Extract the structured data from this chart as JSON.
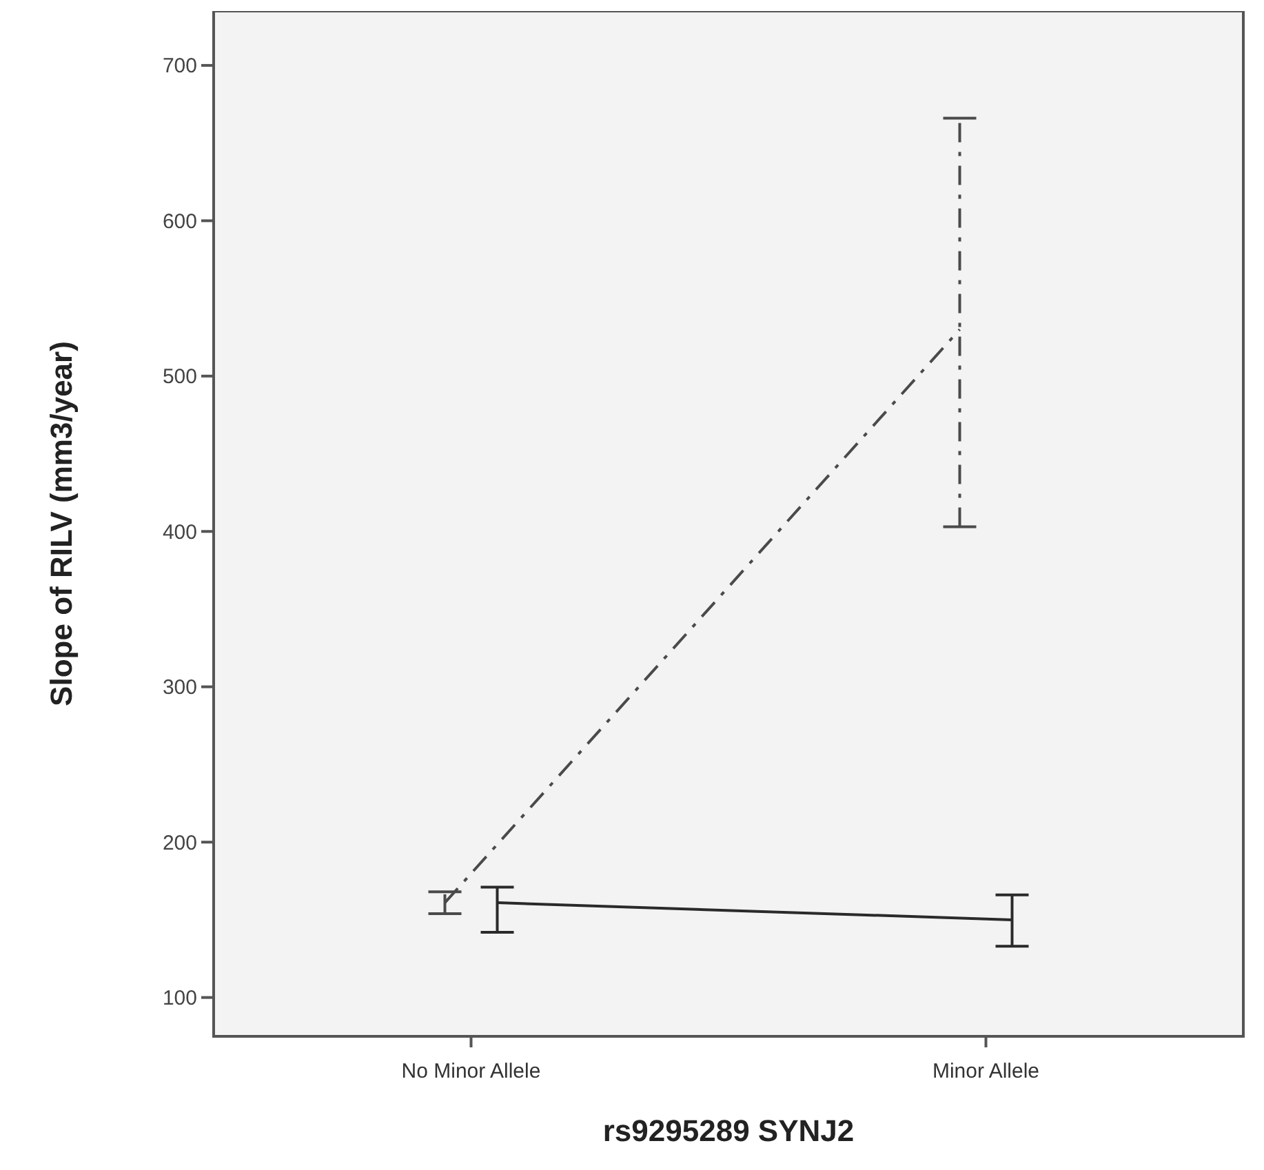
{
  "chart_data": {
    "type": "line",
    "xlabel": "rs9295289 SYNJ2",
    "ylabel": "Slope of RILV (mm3/year)",
    "categories": [
      "No Minor Allele",
      "Minor Allele"
    ],
    "series": [
      {
        "color": "#4a4a4a",
        "line_style": "dashed",
        "values": [
          161,
          530
        ],
        "errors": [
          [
            154,
            168
          ],
          [
            403,
            666
          ]
        ]
      },
      {
        "color": "#2a2a2a",
        "line_style": "solid",
        "values": [
          161,
          150
        ],
        "errors": [
          [
            142,
            171
          ],
          [
            133,
            166
          ]
        ]
      }
    ],
    "ylim": [
      75,
      735
    ],
    "yticks": [
      100,
      200,
      300,
      400,
      500,
      600,
      700
    ],
    "marker": "none",
    "grid": false
  }
}
